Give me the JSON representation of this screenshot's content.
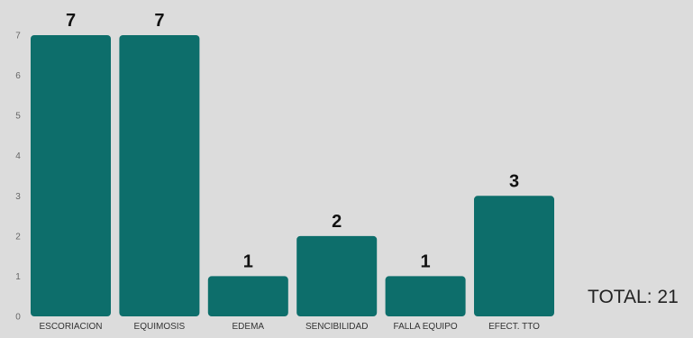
{
  "chart_data": {
    "type": "bar",
    "categories": [
      "ESCORIACION",
      "EQUIMOSIS",
      "EDEMA",
      "SENCIBILIDAD",
      "FALLA EQUIPO",
      "EFECT. TTO"
    ],
    "values": [
      7,
      7,
      1,
      2,
      1,
      3
    ],
    "ylim": [
      0,
      7
    ],
    "yticks": [
      "0",
      "1",
      "2",
      "3",
      "4",
      "5",
      "6",
      "7"
    ],
    "data_labels": [
      "7",
      "7",
      "1",
      "2",
      "1",
      "3"
    ],
    "grid": false,
    "colors": {
      "bar": "#0d6e6b",
      "background": "#dcdcdc",
      "tick_text": "#666666",
      "label_text": "#111111"
    }
  },
  "total_text": "TOTAL: 21"
}
